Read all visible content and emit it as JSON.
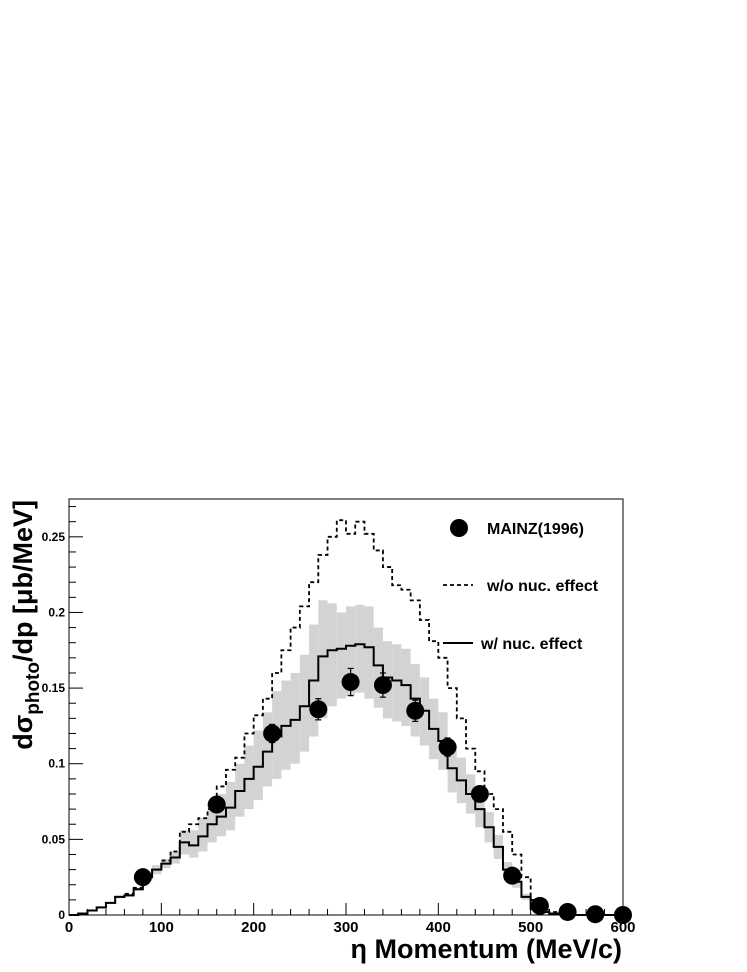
{
  "chart_data": {
    "type": "line",
    "xlabel": {
      "prefix": "η",
      "rest": " Momentum (MeV/c)"
    },
    "ylabel": {
      "main": "dσ",
      "sub": "photo",
      "rest": "/dp [μb/MeV]"
    },
    "xlim": [
      0,
      600
    ],
    "ylim": [
      0,
      0.275
    ],
    "xticks": [
      0,
      100,
      200,
      300,
      400,
      500,
      600
    ],
    "yticks": [
      0,
      0.05,
      0.1,
      0.15,
      0.2,
      0.25
    ],
    "ytick_labels": [
      "0",
      "0.05",
      "0.1",
      "0.15",
      "0.2",
      "0.25"
    ],
    "grid": false,
    "legend_position": "top-right",
    "bin_width": 10,
    "series": [
      {
        "name": "MAINZ(1996)",
        "style": "points",
        "color": "#000000",
        "x": [
          80,
          160,
          220,
          270,
          305,
          340,
          375,
          410,
          445,
          480,
          510,
          540,
          570,
          600
        ],
        "y": [
          0.025,
          0.073,
          0.12,
          0.136,
          0.154,
          0.152,
          0.135,
          0.111,
          0.08,
          0.026,
          0.006,
          0.002,
          0.0005,
          0.0
        ],
        "yerr": [
          0.0,
          0.0,
          0.006,
          0.007,
          0.009,
          0.008,
          0.007,
          0.006,
          0.0,
          0.0,
          0.0,
          0.0,
          0.0,
          0.0
        ]
      },
      {
        "name": "w/o nuc. effect",
        "style": "dashed-step",
        "color": "#000000",
        "y": [
          0,
          0.001,
          0.003,
          0.005,
          0.008,
          0.012,
          0.014,
          0.018,
          0.025,
          0.03,
          0.036,
          0.042,
          0.055,
          0.06,
          0.064,
          0.07,
          0.085,
          0.096,
          0.104,
          0.12,
          0.132,
          0.143,
          0.16,
          0.175,
          0.19,
          0.204,
          0.22,
          0.238,
          0.25,
          0.261,
          0.252,
          0.26,
          0.252,
          0.241,
          0.23,
          0.218,
          0.215,
          0.208,
          0.195,
          0.181,
          0.17,
          0.15,
          0.13,
          0.11,
          0.095,
          0.08,
          0.07,
          0.055,
          0.04,
          0.025,
          0.01,
          0.004,
          0.002,
          0.001,
          0,
          0,
          0,
          0,
          0,
          0
        ]
      },
      {
        "name": "w/ nuc. effect",
        "style": "solid-step",
        "color": "#000000",
        "y": [
          0,
          0.001,
          0.003,
          0.005,
          0.008,
          0.012,
          0.013,
          0.017,
          0.025,
          0.03,
          0.034,
          0.038,
          0.048,
          0.046,
          0.052,
          0.06,
          0.065,
          0.071,
          0.082,
          0.09,
          0.098,
          0.108,
          0.118,
          0.125,
          0.129,
          0.138,
          0.155,
          0.171,
          0.175,
          0.176,
          0.178,
          0.179,
          0.177,
          0.165,
          0.157,
          0.155,
          0.152,
          0.143,
          0.135,
          0.123,
          0.115,
          0.097,
          0.089,
          0.08,
          0.07,
          0.058,
          0.045,
          0.03,
          0.022,
          0.012,
          0.004,
          0.002,
          0.001,
          0.0005,
          0,
          0,
          0,
          0,
          0,
          0
        ]
      },
      {
        "name": "uncertainty band",
        "style": "band",
        "color": "#d3d3d3",
        "lo": [
          0,
          0.001,
          0.003,
          0.005,
          0.008,
          0.011,
          0.012,
          0.016,
          0.023,
          0.027,
          0.031,
          0.034,
          0.04,
          0.038,
          0.042,
          0.048,
          0.052,
          0.056,
          0.065,
          0.07,
          0.076,
          0.085,
          0.09,
          0.096,
          0.1,
          0.108,
          0.118,
          0.13,
          0.138,
          0.143,
          0.145,
          0.147,
          0.143,
          0.137,
          0.13,
          0.128,
          0.125,
          0.118,
          0.112,
          0.103,
          0.096,
          0.081,
          0.074,
          0.067,
          0.058,
          0.048,
          0.037,
          0.025,
          0.018,
          0.01,
          0.003,
          0.002,
          0.001,
          0.0004,
          0,
          0,
          0,
          0,
          0,
          0
        ],
        "hi": [
          0,
          0.001,
          0.003,
          0.005,
          0.008,
          0.013,
          0.014,
          0.018,
          0.027,
          0.033,
          0.037,
          0.042,
          0.056,
          0.056,
          0.064,
          0.074,
          0.08,
          0.088,
          0.1,
          0.112,
          0.122,
          0.134,
          0.148,
          0.155,
          0.16,
          0.172,
          0.192,
          0.208,
          0.206,
          0.2,
          0.204,
          0.205,
          0.204,
          0.19,
          0.181,
          0.179,
          0.176,
          0.166,
          0.157,
          0.143,
          0.134,
          0.113,
          0.104,
          0.093,
          0.082,
          0.068,
          0.053,
          0.035,
          0.026,
          0.014,
          0.005,
          0.002,
          0.001,
          0.0006,
          0,
          0,
          0,
          0,
          0,
          0
        ]
      }
    ],
    "legend": [
      {
        "label": "MAINZ(1996)",
        "symbol": "point"
      },
      {
        "label": "w/o nuc. effect",
        "symbol": "dashed"
      },
      {
        "label": "w/ nuc. effect",
        "symbol": "solid"
      }
    ]
  }
}
